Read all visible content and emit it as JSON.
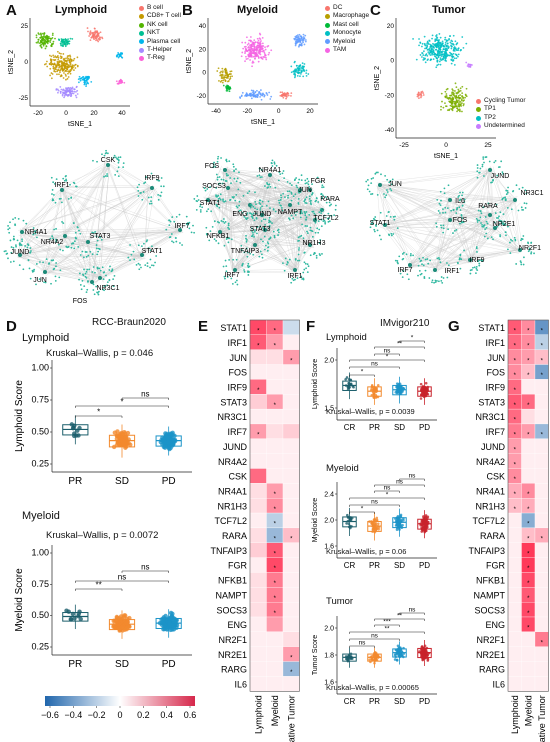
{
  "panels": {
    "A": {
      "letter": "A",
      "title": "Lymphoid",
      "xlabel": "tSNE_1",
      "ylabel": "tSNE_2",
      "xticks": [
        "-20",
        "0",
        "20",
        "40"
      ],
      "yticks": [
        "25",
        "0",
        "-25"
      ],
      "legend": [
        {
          "name": "B cell",
          "color": "#f8766d"
        },
        {
          "name": "CD8+ T cell",
          "color": "#c49a00"
        },
        {
          "name": "NK cell",
          "color": "#53b400"
        },
        {
          "name": "NKT",
          "color": "#00c094"
        },
        {
          "name": "Plasma cell",
          "color": "#00b6eb"
        },
        {
          "name": "T-Helper",
          "color": "#a58aff"
        },
        {
          "name": "T-Reg",
          "color": "#fb61d7"
        }
      ]
    },
    "B": {
      "letter": "B",
      "title": "Myeloid",
      "xlabel": "tSNE_1",
      "ylabel": "tSNE_2",
      "xticks": [
        "-40",
        "-20",
        "0",
        "20"
      ],
      "yticks": [
        "40",
        "20",
        "0",
        "-20"
      ],
      "legend": [
        {
          "name": "DC",
          "color": "#f8766d"
        },
        {
          "name": "Macrophage",
          "color": "#b79f00"
        },
        {
          "name": "Mast cell",
          "color": "#00ba38"
        },
        {
          "name": "Monocyte",
          "color": "#00bfc4"
        },
        {
          "name": "Myeloid",
          "color": "#619cff"
        },
        {
          "name": "TAM",
          "color": "#f564e3"
        }
      ]
    },
    "C": {
      "letter": "C",
      "title": "Tumor",
      "xlabel": "tSNE_1",
      "ylabel": "tSNE_2",
      "xticks": [
        "-25",
        "0",
        "25"
      ],
      "yticks": [
        "20",
        "0",
        "-20",
        "-40"
      ],
      "legend": [
        {
          "name": "Cycling Tumor",
          "color": "#f8766d"
        },
        {
          "name": "TP1",
          "color": "#7cae00"
        },
        {
          "name": "TP2",
          "color": "#00bfc4"
        },
        {
          "name": "Undetermined",
          "color": "#c77cff"
        }
      ]
    },
    "networks": {
      "lymphoid": [
        "CSK",
        "IRF1",
        "IRF9",
        "NR4A1",
        "NR4A2",
        "IRF7",
        "JUND",
        "STAT3",
        "STAT1",
        "JUN",
        "FOS",
        "NR3C1"
      ],
      "myeloid": [
        "FOS",
        "NR4A1",
        "FGR",
        "SOCS3",
        "JUN",
        "RARA",
        "STAT1",
        "ENG",
        "NAMPT",
        "TCF7L2",
        "JUND",
        "NFKB1",
        "STAT3",
        "TNFAIP3",
        "NR1H3",
        "IRF7",
        "IRF1"
      ],
      "tumor": [
        "JUN",
        "JUND",
        "NR3C1",
        "IL6",
        "RARA",
        "FOS",
        "STAT1",
        "NR2E1",
        "NR2F1",
        "IRF9",
        "IRF7",
        "IRF1"
      ]
    },
    "D": {
      "letter": "D",
      "dataset": "RCC-Braun2020",
      "lymphoid": {
        "title": "Lymphoid",
        "ylabel": "Lymphoid Score",
        "stat": "Kruskal–Wallis, p = 0.046",
        "yticks": [
          "1.00",
          "0.75",
          "0.50",
          "0.25"
        ],
        "groups": [
          "PR",
          "SD",
          "PD"
        ],
        "sig": [
          "*",
          "*",
          "ns"
        ]
      },
      "myeloid": {
        "title": "Myeloid",
        "ylabel": "Myeloid Score",
        "stat": "Kruskal–Wallis, p = 0.0072",
        "yticks": [
          "1.00",
          "0.75",
          "0.50",
          "0.25"
        ],
        "groups": [
          "PR",
          "SD",
          "PD"
        ],
        "sig": [
          "**",
          "ns",
          "ns"
        ]
      },
      "colorbar": {
        "ticks": [
          "−0.6",
          "−0.4",
          "−0.2",
          "0",
          "0.2",
          "0.4",
          "0.6"
        ]
      }
    },
    "E": {
      "letter": "E",
      "rows": [
        "STAT1",
        "IRF1",
        "JUN",
        "FOS",
        "IRF9",
        "STAT3",
        "NR3C1",
        "IRF7",
        "JUND",
        "NR4A2",
        "CSK",
        "NR4A1",
        "NR1H3",
        "TCF7L2",
        "RARA",
        "TNFAIP3",
        "FGR",
        "NFKB1",
        "NAMPT",
        "SOCS3",
        "ENG",
        "NR2F1",
        "NR2E1",
        "RARG",
        "IL6"
      ],
      "cols": [
        "Lymphoid",
        "Myeloid",
        "Putative Tumor"
      ],
      "values": [
        [
          0.55,
          0.45,
          -0.15
        ],
        [
          0.5,
          0.3,
          0.05
        ],
        [
          0.1,
          0.1,
          0.3
        ],
        [
          0.05,
          0.05,
          0.05
        ],
        [
          0.45,
          0.05,
          0.05
        ],
        [
          0.15,
          0.3,
          0.05
        ],
        [
          0.05,
          0.05,
          0.05
        ],
        [
          0.3,
          0.1,
          0.15
        ],
        [
          0.05,
          0.05,
          0.05
        ],
        [
          0.05,
          0.05,
          0.05
        ],
        [
          0.45,
          0.05,
          0.05
        ],
        [
          0.1,
          0.3,
          0.05
        ],
        [
          0.1,
          0.35,
          0.05
        ],
        [
          0.05,
          -0.2,
          0.05
        ],
        [
          0.1,
          -0.3,
          0.2
        ],
        [
          0.15,
          0.5,
          0.05
        ],
        [
          0.05,
          0.55,
          0.05
        ],
        [
          0.1,
          0.4,
          0.05
        ],
        [
          0.1,
          0.4,
          0.05
        ],
        [
          0.1,
          0.4,
          0.05
        ],
        [
          0.05,
          0.3,
          0.05
        ],
        [
          0.05,
          0.05,
          0.1
        ],
        [
          0.05,
          0.05,
          0.3
        ],
        [
          0.05,
          0.05,
          -0.3
        ],
        [
          0.05,
          0.05,
          0.05
        ]
      ],
      "stars": [
        [
          1,
          1,
          0
        ],
        [
          1,
          1,
          0
        ],
        [
          0,
          0,
          1
        ],
        [
          0,
          0,
          0
        ],
        [
          1,
          0,
          0
        ],
        [
          0,
          1,
          0
        ],
        [
          0,
          0,
          0
        ],
        [
          1,
          0,
          0
        ],
        [
          0,
          0,
          0
        ],
        [
          0,
          0,
          0
        ],
        [
          0,
          0,
          0
        ],
        [
          0,
          1,
          0
        ],
        [
          0,
          1,
          0
        ],
        [
          0,
          1,
          0
        ],
        [
          0,
          1,
          1
        ],
        [
          0,
          1,
          0
        ],
        [
          0,
          1,
          0
        ],
        [
          0,
          1,
          0
        ],
        [
          0,
          1,
          0
        ],
        [
          0,
          1,
          0
        ],
        [
          0,
          0,
          0
        ],
        [
          0,
          0,
          0
        ],
        [
          0,
          0,
          1
        ],
        [
          0,
          0,
          1
        ],
        [
          0,
          0,
          0
        ]
      ]
    },
    "F": {
      "letter": "F",
      "dataset": "IMvigor210",
      "groups": [
        "CR",
        "PR",
        "SD",
        "PD"
      ],
      "lymphoid": {
        "title": "Lymphoid",
        "ylabel": "Lymphoid Score",
        "stat": "Kruskal–Wallis, p = 0.0039",
        "yticks": [
          "2.0",
          "1.5"
        ],
        "sig": [
          "*",
          "ns",
          "*",
          "ns",
          "**",
          "*"
        ]
      },
      "myeloid": {
        "title": "Myeloid",
        "ylabel": "Myeloid Score",
        "stat": "Kruskal–Wallis, p = 0.06",
        "yticks": [
          "2.4",
          "2.0",
          "1.6"
        ],
        "sig": [
          "*",
          "ns",
          "*",
          "ns",
          "ns",
          "ns"
        ]
      },
      "tumor": {
        "title": "Tumor",
        "ylabel": "Tumor Score",
        "stat": "Kruskal–Wallis, p = 0.00065",
        "yticks": [
          "2.0",
          "1.8",
          "1.6"
        ],
        "sig": [
          "ns",
          "ns",
          "**",
          "***",
          "**",
          "ns"
        ]
      }
    },
    "G": {
      "letter": "G",
      "rows": [
        "STAT1",
        "IRF1",
        "JUN",
        "FOS",
        "IRF9",
        "STAT3",
        "NR3C1",
        "IRF7",
        "JUND",
        "NR4A2",
        "CSK",
        "NR4A1",
        "NR1H3",
        "TCF7L2",
        "RARA",
        "TNFAIP3",
        "FGR",
        "NFKB1",
        "NAMPT",
        "SOCS3",
        "ENG",
        "NR2F1",
        "NR2E1",
        "RARG",
        "IL6"
      ],
      "cols": [
        "Lymphoid",
        "Myeloid",
        "Putative Tumor"
      ],
      "values": [
        [
          0.5,
          0.35,
          -0.45
        ],
        [
          0.45,
          0.35,
          -0.2
        ],
        [
          0.35,
          0.3,
          0.2
        ],
        [
          0.35,
          0.2,
          -0.4
        ],
        [
          0.45,
          0.05,
          0.05
        ],
        [
          0.5,
          0.45,
          0.05
        ],
        [
          0.45,
          0.1,
          0.05
        ],
        [
          0.4,
          0.3,
          -0.3
        ],
        [
          0.3,
          0.05,
          0.05
        ],
        [
          0.3,
          0.05,
          0.05
        ],
        [
          0.35,
          0.05,
          0.05
        ],
        [
          0.25,
          0.35,
          0.05
        ],
        [
          0.2,
          0.25,
          0.05
        ],
        [
          0.05,
          -0.35,
          0.05
        ],
        [
          0.05,
          0.2,
          0.25
        ],
        [
          0.05,
          0.6,
          0.05
        ],
        [
          0.05,
          0.6,
          0.05
        ],
        [
          0.05,
          0.55,
          0.05
        ],
        [
          0.05,
          0.5,
          0.05
        ],
        [
          0.05,
          0.55,
          0.05
        ],
        [
          0.05,
          0.55,
          0.05
        ],
        [
          0.05,
          0.05,
          0.4
        ],
        [
          0.05,
          0.05,
          0.05
        ],
        [
          0.05,
          0.05,
          0.05
        ],
        [
          0.05,
          0.05,
          0.05
        ]
      ],
      "stars": [
        [
          1,
          1,
          1
        ],
        [
          1,
          1,
          1
        ],
        [
          1,
          1,
          1
        ],
        [
          1,
          1,
          1
        ],
        [
          1,
          0,
          0
        ],
        [
          1,
          1,
          0
        ],
        [
          1,
          0,
          0
        ],
        [
          1,
          1,
          1
        ],
        [
          1,
          0,
          0
        ],
        [
          1,
          0,
          0
        ],
        [
          1,
          0,
          0
        ],
        [
          1,
          1,
          0
        ],
        [
          1,
          1,
          0
        ],
        [
          0,
          1,
          0
        ],
        [
          0,
          1,
          1
        ],
        [
          0,
          1,
          0
        ],
        [
          0,
          1,
          0
        ],
        [
          0,
          1,
          0
        ],
        [
          0,
          1,
          0
        ],
        [
          0,
          1,
          0
        ],
        [
          0,
          1,
          0
        ],
        [
          0,
          0,
          1
        ],
        [
          0,
          0,
          0
        ],
        [
          0,
          0,
          0
        ],
        [
          0,
          0,
          0
        ]
      ]
    }
  }
}
